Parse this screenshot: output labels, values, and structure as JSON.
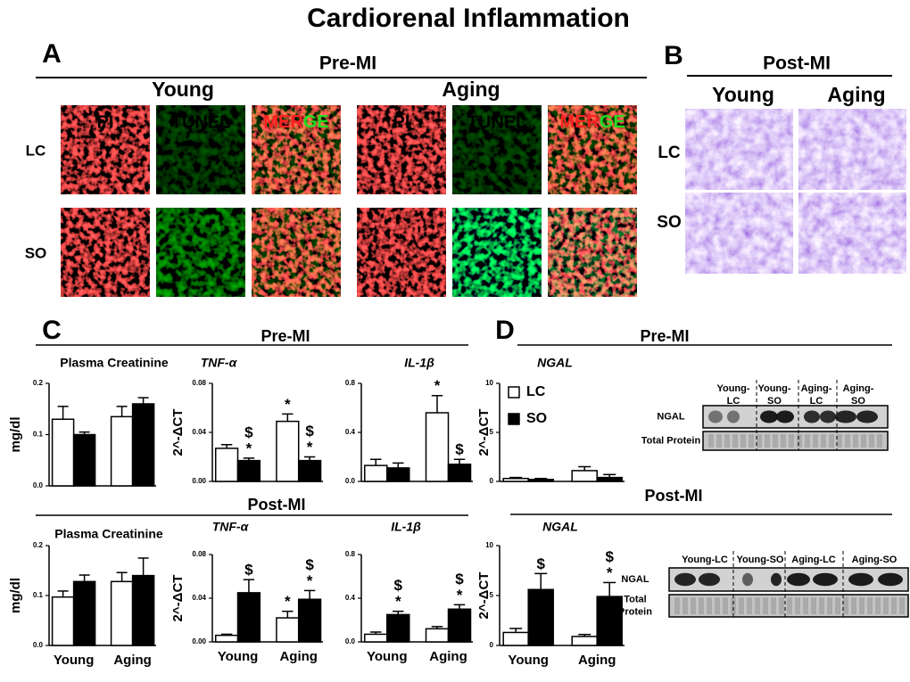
{
  "figure": {
    "title": "Cardiorenal Inflammation",
    "panel_a": {
      "letter": "A",
      "phase": "Pre-MI",
      "groups": [
        "Young",
        "Aging"
      ],
      "rows": [
        "LC",
        "SO"
      ],
      "channels": [
        {
          "label": "PI"
        },
        {
          "label": "TUNEL"
        },
        {
          "parts": [
            "MER",
            "GE"
          ]
        }
      ]
    },
    "panel_b": {
      "letter": "B",
      "phase": "Post-MI",
      "groups": [
        "Young",
        "Aging"
      ],
      "rows": [
        "LC",
        "SO"
      ]
    },
    "panel_c": {
      "letter": "C",
      "phases": [
        "Pre-MI",
        "Post-MI"
      ]
    },
    "panel_d": {
      "letter": "D",
      "phases": [
        "Pre-MI",
        "Post-MI"
      ],
      "blot_pre": {
        "lanes": [
          [
            "Young-",
            "LC"
          ],
          [
            "Young-",
            "SO"
          ],
          [
            "Aging-",
            "LC"
          ],
          [
            "Aging-",
            "SO"
          ]
        ],
        "rows": [
          [
            "NGAL"
          ],
          [
            "Total Protein"
          ]
        ]
      },
      "blot_post": {
        "lanes": [
          [
            "Young-LC"
          ],
          [
            "Young-SO"
          ],
          [
            "Aging-LC"
          ],
          [
            "Aging-SO"
          ]
        ],
        "rows": [
          [
            "NGAL"
          ],
          [
            "Total",
            "Protein"
          ]
        ]
      }
    }
  },
  "chart_data": [
    {
      "type": "bar",
      "title": "Plasma Creatinine",
      "ylabel": "mg/dl",
      "ylim": [
        0,
        0.2
      ],
      "yticks": [
        {
          "value": 0,
          "label": "0.0"
        },
        0.1,
        0.2
      ],
      "series": [
        {
          "color": "#ffffff",
          "values": [
            0.13,
            0.135
          ],
          "errors": [
            0.025,
            0.02
          ]
        },
        {
          "color": "#000000",
          "values": [
            0.1,
            0.16
          ],
          "errors": [
            0.005,
            0.012
          ]
        }
      ]
    },
    {
      "type": "bar",
      "title": "TNF-α",
      "ylabel": "2^-ΔCT",
      "ylim": [
        0,
        0.08
      ],
      "yticks": [
        {
          "value": 0,
          "label": "0.00"
        },
        {
          "value": 0.04,
          "label": "0.04"
        },
        {
          "value": 0.08,
          "label": "0.08"
        }
      ],
      "series": [
        {
          "color": "#ffffff",
          "values": [
            0.027,
            0.049
          ],
          "errors": [
            0.003,
            0.006
          ],
          "annotations": [
            null,
            [
              "*"
            ]
          ]
        },
        {
          "color": "#000000",
          "values": [
            0.017,
            0.017
          ],
          "errors": [
            0.002,
            0.003
          ],
          "annotations": [
            [
              "$",
              "*"
            ],
            [
              "$",
              "*"
            ]
          ]
        }
      ]
    },
    {
      "type": "bar",
      "title": "IL-1β",
      "ylim": [
        0,
        0.8
      ],
      "yticks": [
        {
          "value": 0,
          "label": "0.0"
        },
        0.4,
        0.8
      ],
      "series": [
        {
          "color": "#ffffff",
          "values": [
            0.13,
            0.56
          ],
          "errors": [
            0.05,
            0.14
          ],
          "annotations": [
            null,
            [
              "*"
            ]
          ]
        },
        {
          "color": "#000000",
          "values": [
            0.11,
            0.14
          ],
          "errors": [
            0.04,
            0.04
          ],
          "annotations": [
            null,
            [
              "$"
            ]
          ]
        }
      ]
    },
    {
      "type": "bar",
      "title": "Plasma Creatinine",
      "ylabel": "mg/dl",
      "categories": [
        "Young",
        "Aging"
      ],
      "ylim": [
        0,
        0.2
      ],
      "yticks": [
        {
          "value": 0,
          "label": "0.0"
        },
        0.1,
        0.2
      ],
      "series": [
        {
          "color": "#ffffff",
          "values": [
            0.097,
            0.128
          ],
          "errors": [
            0.012,
            0.018
          ]
        },
        {
          "color": "#000000",
          "values": [
            0.128,
            0.14
          ],
          "errors": [
            0.013,
            0.035
          ]
        }
      ]
    },
    {
      "type": "bar",
      "title": "TNF-α",
      "ylabel": "2^-ΔCT",
      "categories": [
        "Young",
        "Aging"
      ],
      "ylim": [
        0,
        0.08
      ],
      "yticks": [
        {
          "value": 0,
          "label": "0.00"
        },
        {
          "value": 0.04,
          "label": "0.04"
        },
        {
          "value": 0.08,
          "label": "0.08"
        }
      ],
      "series": [
        {
          "color": "#ffffff",
          "values": [
            0.006,
            0.022
          ],
          "errors": [
            0.001,
            0.006
          ],
          "annotations": [
            null,
            [
              "*"
            ]
          ]
        },
        {
          "color": "#000000",
          "values": [
            0.045,
            0.039
          ],
          "errors": [
            0.012,
            0.008
          ],
          "annotations": [
            [
              "$"
            ],
            [
              "$",
              "*"
            ]
          ]
        }
      ]
    },
    {
      "type": "bar",
      "title": "IL-1β",
      "categories": [
        "Young",
        "Aging"
      ],
      "ylim": [
        0,
        0.8
      ],
      "yticks": [
        {
          "value": 0,
          "label": "0.0"
        },
        0.4,
        0.8
      ],
      "series": [
        {
          "color": "#ffffff",
          "values": [
            0.07,
            0.12
          ],
          "errors": [
            0.02,
            0.02
          ]
        },
        {
          "color": "#000000",
          "values": [
            0.25,
            0.3
          ],
          "errors": [
            0.03,
            0.04
          ],
          "annotations": [
            [
              "$",
              "*"
            ],
            [
              "$",
              "*"
            ]
          ]
        }
      ]
    },
    {
      "type": "bar",
      "title": "NGAL",
      "ylabel": "2^-ΔCT",
      "ylim": [
        0,
        10
      ],
      "yticks": [
        0,
        5,
        10
      ],
      "legend": "upper left",
      "series": [
        {
          "name": "LC",
          "color": "#ffffff",
          "values": [
            0.3,
            1.1
          ],
          "errors": [
            0.1,
            0.4
          ]
        },
        {
          "name": "SO",
          "color": "#000000",
          "values": [
            0.2,
            0.4
          ],
          "errors": [
            0.1,
            0.3
          ]
        }
      ]
    },
    {
      "type": "bar",
      "title": "NGAL",
      "ylabel": "2^-ΔCT",
      "categories": [
        "Young",
        "Aging"
      ],
      "ylim": [
        0,
        10
      ],
      "yticks": [
        0,
        5,
        10
      ],
      "series": [
        {
          "color": "#ffffff",
          "values": [
            1.3,
            0.9
          ],
          "errors": [
            0.4,
            0.2
          ]
        },
        {
          "color": "#000000",
          "values": [
            5.6,
            4.9
          ],
          "errors": [
            1.6,
            1.4
          ],
          "annotations": [
            [
              "$"
            ],
            [
              "$",
              "*"
            ]
          ]
        }
      ]
    }
  ]
}
